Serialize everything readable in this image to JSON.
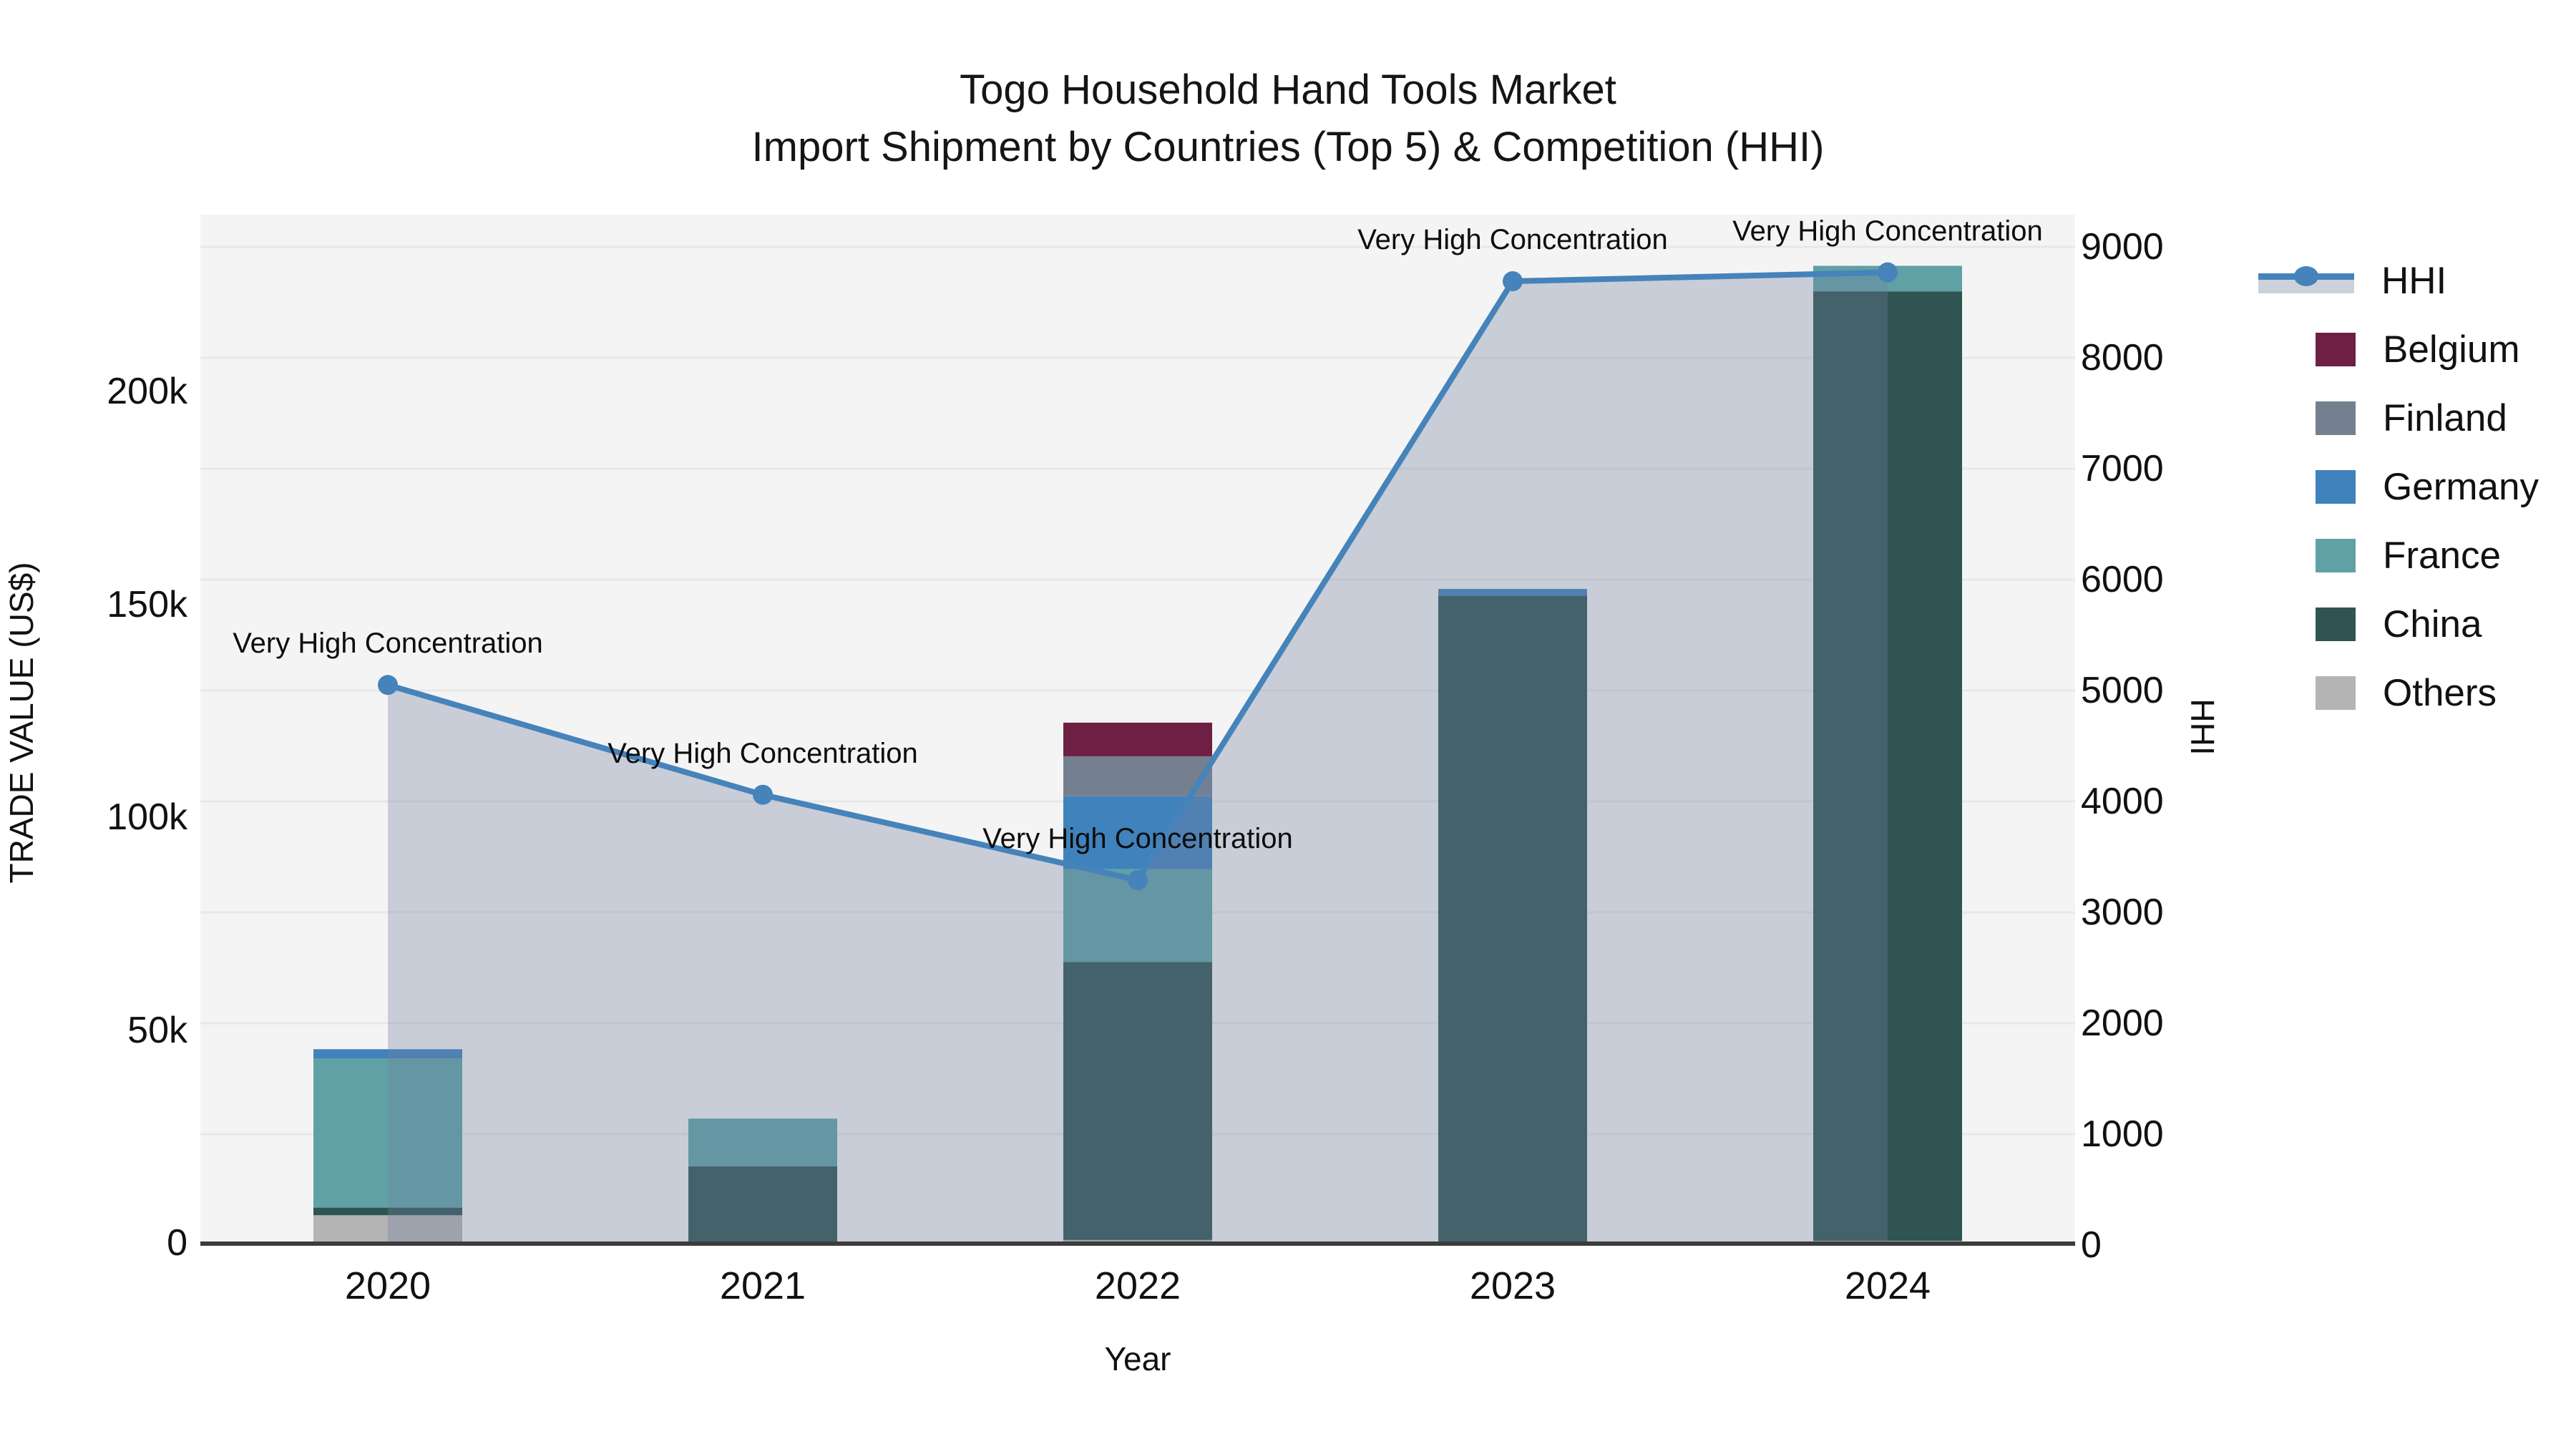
{
  "title": {
    "line1": "Togo Household Hand Tools Market",
    "line2": "Import Shipment by Countries (Top 5) & Competition (HHI)"
  },
  "colors": {
    "background": "#ffffff",
    "plot_background": "#f4f4f4",
    "gridline": "#e8e8e8",
    "axis_line": "#3c3c3c",
    "hhi_line": "#4583ba",
    "hhi_area_fill_rgba": "rgba(113,128,160,0.33)",
    "belgium": "#6e2044",
    "finland": "#74808f",
    "germany": "#4082bb",
    "france": "#5fa1a4",
    "china": "#2f5452",
    "others": "#b4b4b4"
  },
  "legend": {
    "items": [
      {
        "label": "HHI",
        "type": "line-area",
        "color": "#4583ba"
      },
      {
        "label": "Belgium",
        "type": "patch",
        "color": "#6e2044"
      },
      {
        "label": "Finland",
        "type": "patch",
        "color": "#74808f"
      },
      {
        "label": "Germany",
        "type": "patch",
        "color": "#4082bb"
      },
      {
        "label": "France",
        "type": "patch",
        "color": "#5fa1a4"
      },
      {
        "label": "China",
        "type": "patch",
        "color": "#2f5452"
      },
      {
        "label": "Others",
        "type": "patch",
        "color": "#b4b4b4"
      }
    ]
  },
  "chart_data": {
    "type": "bar",
    "subtype": "stacked-bar with line-area overlay (dual axis)",
    "title": "Togo Household Hand Tools Market — Import Shipment by Countries (Top 5) & Competition (HHI)",
    "categories": [
      "2020",
      "2021",
      "2022",
      "2023",
      "2024"
    ],
    "bar_series": [
      {
        "name": "Others",
        "color": "#b4b4b4",
        "values": [
          6500,
          0,
          700,
          0,
          500
        ]
      },
      {
        "name": "China",
        "color": "#2f5452",
        "values": [
          1800,
          18000,
          65300,
          152000,
          223000
        ]
      },
      {
        "name": "France",
        "color": "#5fa1a4",
        "values": [
          35000,
          11200,
          21800,
          0,
          6000
        ]
      },
      {
        "name": "Germany",
        "color": "#4082bb",
        "values": [
          2200,
          0,
          17100,
          1600,
          0
        ]
      },
      {
        "name": "Finland",
        "color": "#74808f",
        "values": [
          0,
          0,
          9400,
          0,
          0
        ]
      },
      {
        "name": "Belgium",
        "color": "#6e2044",
        "values": [
          0,
          0,
          7900,
          0,
          0
        ]
      }
    ],
    "bar_totals": [
      45500,
      29200,
      122200,
      153600,
      229500
    ],
    "line_series": {
      "name": "HHI",
      "axis": "right",
      "color": "#4583ba",
      "values": [
        5050,
        4060,
        3290,
        8690,
        8770
      ]
    },
    "annotations": [
      {
        "year": "2020",
        "text": "Very High Concentration"
      },
      {
        "year": "2021",
        "text": "Very High Concentration"
      },
      {
        "year": "2022",
        "text": "Very High Concentration"
      },
      {
        "year": "2023",
        "text": "Very High Concentration"
      },
      {
        "year": "2024",
        "text": "Very High Concentration"
      }
    ],
    "left_axis": {
      "label": "TRADE VALUE (US$)",
      "tick_labels": [
        "0",
        "50k",
        "100k",
        "150k",
        "200k"
      ],
      "tick_values": [
        0,
        50000,
        100000,
        150000,
        200000
      ]
    },
    "right_axis": {
      "label": "HHI",
      "tick_labels": [
        "0",
        "1000",
        "2000",
        "3000",
        "4000",
        "5000",
        "6000",
        "7000",
        "8000",
        "9000"
      ],
      "tick_values": [
        0,
        1000,
        2000,
        3000,
        4000,
        5000,
        6000,
        7000,
        8000,
        9000
      ]
    },
    "x_axis": {
      "label": "Year"
    },
    "grid": "horizontal, at right-axis (HHI) ticks",
    "legend_position": "outside right"
  }
}
